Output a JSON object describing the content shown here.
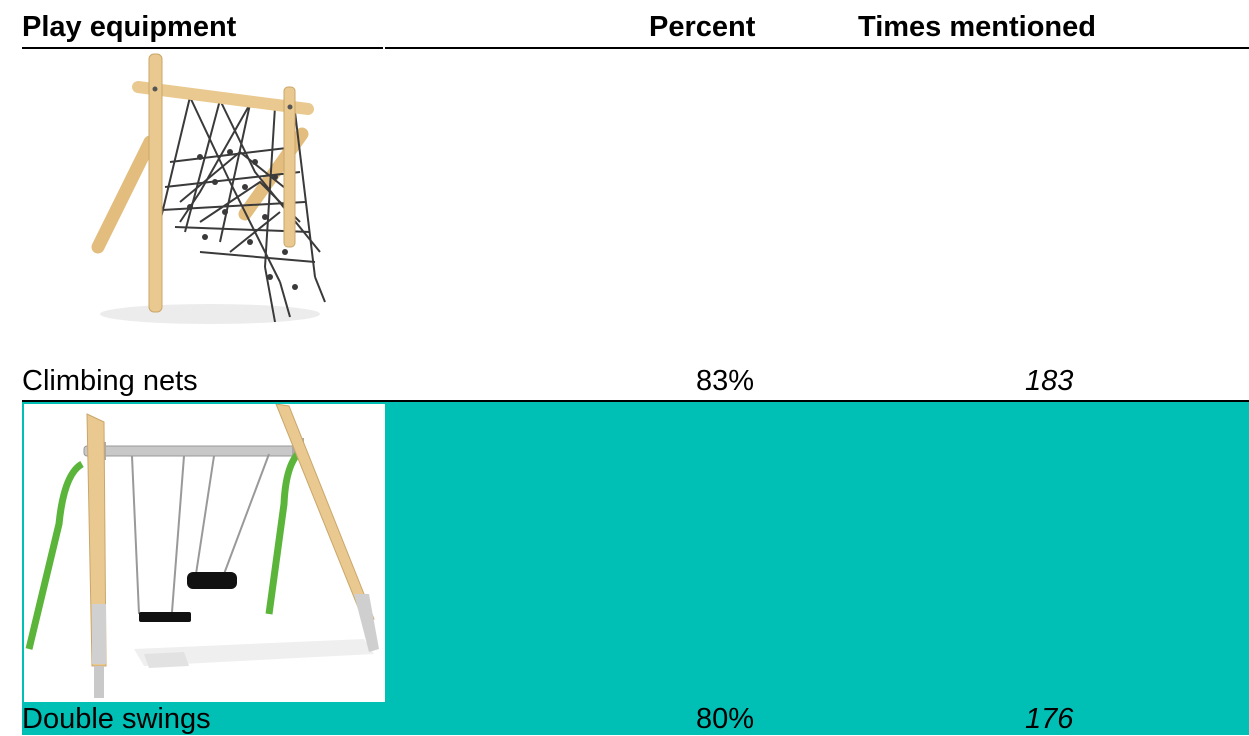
{
  "table": {
    "headers": {
      "equipment": "Play equipment",
      "percent": "Percent",
      "times": "Times mentioned"
    },
    "rows": [
      {
        "name": "Climbing nets",
        "percent": "83%",
        "times": "183",
        "image": "climbing-net-image"
      },
      {
        "name": "Double swings",
        "percent": "80%",
        "times": "176",
        "image": "double-swing-image"
      }
    ]
  },
  "colors": {
    "highlight": "#00bfb5",
    "wood": "#e9c98f",
    "net": "#3a3a3a",
    "green": "#5bb53b"
  }
}
